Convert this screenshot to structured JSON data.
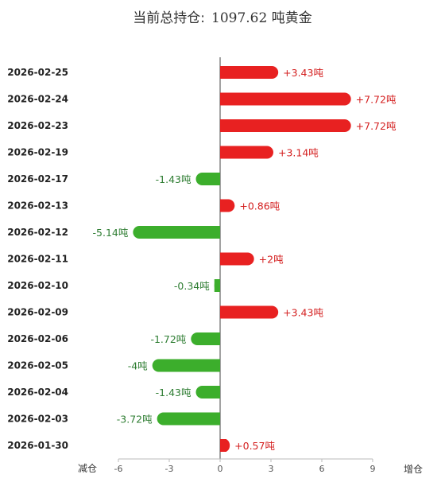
{
  "title": {
    "label": "当前总持仓:",
    "value": "1097.62 吨黄金"
  },
  "chart_data": {
    "type": "bar",
    "orientation": "horizontal",
    "categories": [
      "2026-02-25",
      "2026-02-24",
      "2026-02-23",
      "2026-02-19",
      "2026-02-17",
      "2026-02-13",
      "2026-02-12",
      "2026-02-11",
      "2026-02-10",
      "2026-02-09",
      "2026-02-06",
      "2026-02-05",
      "2026-02-04",
      "2026-02-03",
      "2026-01-30"
    ],
    "values": [
      3.43,
      7.72,
      7.72,
      3.14,
      -1.43,
      0.86,
      -5.14,
      2,
      -0.34,
      3.43,
      -1.72,
      -4,
      -1.43,
      -3.72,
      0.57
    ],
    "data_labels": [
      "+3.43吨",
      "+7.72吨",
      "+7.72吨",
      "+3.14吨",
      "-1.43吨",
      "+0.86吨",
      "-5.14吨",
      "+2吨",
      "-0.34吨",
      "+3.43吨",
      "-1.72吨",
      "-4吨",
      "-1.43吨",
      "-3.72吨",
      "+0.57吨"
    ],
    "xlim": [
      -6,
      9
    ],
    "xticks": [
      -6,
      -3,
      0,
      3,
      6,
      9
    ],
    "xlabel_left": "减仓",
    "xlabel_right": "增仓",
    "colors": {
      "positive": "#e82121",
      "negative": "#3cae2c",
      "positive_label": "#d42020",
      "negative_label": "#2e7d32"
    },
    "grid": false,
    "legend": "none"
  }
}
